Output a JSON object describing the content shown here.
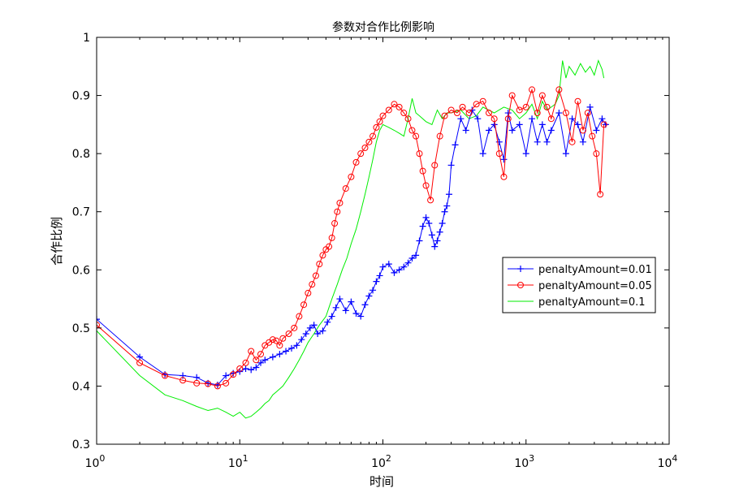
{
  "chart_data": {
    "type": "line",
    "title": "参数对合作比例影响",
    "xlabel": "时间",
    "ylabel": "合作比例",
    "xscale": "log",
    "xlim": [
      1,
      10000
    ],
    "ylim": [
      0.3,
      1.0
    ],
    "xticks": [
      1,
      10,
      100,
      1000,
      10000
    ],
    "xtick_base": "10",
    "xtick_exponents": [
      "0",
      "1",
      "2",
      "3",
      "4"
    ],
    "yticks": [
      "0.3",
      "0.4",
      "0.5",
      "0.6",
      "0.7",
      "0.8",
      "0.9",
      "1"
    ],
    "grid": false,
    "legend_position": "right",
    "series": [
      {
        "name": "penaltyAmount=0.01",
        "color": "#0000ff",
        "marker": "plus",
        "points": [
          [
            1,
            0.515
          ],
          [
            2,
            0.45
          ],
          [
            3,
            0.42
          ],
          [
            4,
            0.418
          ],
          [
            5,
            0.415
          ],
          [
            6,
            0.405
          ],
          [
            7,
            0.402
          ],
          [
            8,
            0.418
          ],
          [
            9,
            0.422
          ],
          [
            10,
            0.425
          ],
          [
            11,
            0.43
          ],
          [
            12,
            0.428
          ],
          [
            13,
            0.432
          ],
          [
            14,
            0.44
          ],
          [
            15,
            0.445
          ],
          [
            17,
            0.45
          ],
          [
            19,
            0.455
          ],
          [
            21,
            0.46
          ],
          [
            23,
            0.465
          ],
          [
            25,
            0.47
          ],
          [
            27,
            0.48
          ],
          [
            29,
            0.49
          ],
          [
            31,
            0.5
          ],
          [
            33,
            0.505
          ],
          [
            35,
            0.49
          ],
          [
            38,
            0.495
          ],
          [
            41,
            0.51
          ],
          [
            44,
            0.52
          ],
          [
            47,
            0.535
          ],
          [
            50,
            0.55
          ],
          [
            55,
            0.53
          ],
          [
            60,
            0.545
          ],
          [
            65,
            0.525
          ],
          [
            70,
            0.52
          ],
          [
            75,
            0.54
          ],
          [
            80,
            0.555
          ],
          [
            85,
            0.565
          ],
          [
            90,
            0.58
          ],
          [
            95,
            0.59
          ],
          [
            100,
            0.605
          ],
          [
            110,
            0.61
          ],
          [
            120,
            0.595
          ],
          [
            130,
            0.6
          ],
          [
            140,
            0.605
          ],
          [
            150,
            0.612
          ],
          [
            160,
            0.62
          ],
          [
            170,
            0.625
          ],
          [
            180,
            0.65
          ],
          [
            190,
            0.675
          ],
          [
            200,
            0.69
          ],
          [
            210,
            0.68
          ],
          [
            220,
            0.66
          ],
          [
            230,
            0.64
          ],
          [
            240,
            0.65
          ],
          [
            250,
            0.665
          ],
          [
            260,
            0.68
          ],
          [
            270,
            0.7
          ],
          [
            280,
            0.71
          ],
          [
            290,
            0.73
          ],
          [
            300,
            0.78
          ],
          [
            320,
            0.815
          ],
          [
            350,
            0.86
          ],
          [
            380,
            0.84
          ],
          [
            420,
            0.875
          ],
          [
            460,
            0.86
          ],
          [
            500,
            0.8
          ],
          [
            550,
            0.84
          ],
          [
            600,
            0.85
          ],
          [
            650,
            0.82
          ],
          [
            700,
            0.79
          ],
          [
            750,
            0.87
          ],
          [
            800,
            0.84
          ],
          [
            900,
            0.85
          ],
          [
            1000,
            0.8
          ],
          [
            1100,
            0.86
          ],
          [
            1200,
            0.82
          ],
          [
            1300,
            0.85
          ],
          [
            1400,
            0.82
          ],
          [
            1500,
            0.84
          ],
          [
            1700,
            0.87
          ],
          [
            1900,
            0.8
          ],
          [
            2100,
            0.86
          ],
          [
            2300,
            0.85
          ],
          [
            2500,
            0.82
          ],
          [
            2800,
            0.88
          ],
          [
            3100,
            0.84
          ],
          [
            3400,
            0.86
          ],
          [
            3600,
            0.85
          ]
        ]
      },
      {
        "name": "penaltyAmount=0.05",
        "color": "#ff0000",
        "marker": "circle",
        "points": [
          [
            1,
            0.505
          ],
          [
            2,
            0.44
          ],
          [
            3,
            0.418
          ],
          [
            4,
            0.41
          ],
          [
            5,
            0.405
          ],
          [
            6,
            0.404
          ],
          [
            7,
            0.4
          ],
          [
            8,
            0.405
          ],
          [
            9,
            0.42
          ],
          [
            10,
            0.43
          ],
          [
            11,
            0.44
          ],
          [
            12,
            0.46
          ],
          [
            13,
            0.445
          ],
          [
            14,
            0.455
          ],
          [
            15,
            0.47
          ],
          [
            16,
            0.475
          ],
          [
            17,
            0.48
          ],
          [
            18,
            0.478
          ],
          [
            19,
            0.47
          ],
          [
            20,
            0.482
          ],
          [
            22,
            0.49
          ],
          [
            24,
            0.5
          ],
          [
            26,
            0.52
          ],
          [
            28,
            0.54
          ],
          [
            30,
            0.56
          ],
          [
            32,
            0.575
          ],
          [
            34,
            0.59
          ],
          [
            36,
            0.61
          ],
          [
            38,
            0.625
          ],
          [
            40,
            0.635
          ],
          [
            42,
            0.64
          ],
          [
            44,
            0.655
          ],
          [
            46,
            0.68
          ],
          [
            48,
            0.7
          ],
          [
            50,
            0.715
          ],
          [
            55,
            0.74
          ],
          [
            60,
            0.76
          ],
          [
            65,
            0.785
          ],
          [
            70,
            0.8
          ],
          [
            75,
            0.81
          ],
          [
            80,
            0.82
          ],
          [
            85,
            0.83
          ],
          [
            90,
            0.845
          ],
          [
            95,
            0.855
          ],
          [
            100,
            0.865
          ],
          [
            110,
            0.875
          ],
          [
            120,
            0.885
          ],
          [
            130,
            0.88
          ],
          [
            140,
            0.87
          ],
          [
            150,
            0.86
          ],
          [
            160,
            0.84
          ],
          [
            170,
            0.83
          ],
          [
            180,
            0.8
          ],
          [
            190,
            0.77
          ],
          [
            200,
            0.745
          ],
          [
            215,
            0.72
          ],
          [
            230,
            0.78
          ],
          [
            250,
            0.83
          ],
          [
            270,
            0.865
          ],
          [
            300,
            0.875
          ],
          [
            330,
            0.87
          ],
          [
            360,
            0.88
          ],
          [
            400,
            0.87
          ],
          [
            450,
            0.885
          ],
          [
            500,
            0.89
          ],
          [
            550,
            0.87
          ],
          [
            600,
            0.86
          ],
          [
            650,
            0.8
          ],
          [
            700,
            0.76
          ],
          [
            750,
            0.86
          ],
          [
            800,
            0.9
          ],
          [
            900,
            0.875
          ],
          [
            1000,
            0.88
          ],
          [
            1100,
            0.91
          ],
          [
            1200,
            0.87
          ],
          [
            1300,
            0.9
          ],
          [
            1400,
            0.88
          ],
          [
            1500,
            0.86
          ],
          [
            1700,
            0.91
          ],
          [
            1900,
            0.87
          ],
          [
            2100,
            0.82
          ],
          [
            2300,
            0.89
          ],
          [
            2500,
            0.84
          ],
          [
            2700,
            0.87
          ],
          [
            2900,
            0.83
          ],
          [
            3100,
            0.8
          ],
          [
            3300,
            0.73
          ],
          [
            3500,
            0.85
          ]
        ]
      },
      {
        "name": "penaltyAmount=0.1",
        "color": "#00ee00",
        "marker": "none",
        "points": [
          [
            1,
            0.495
          ],
          [
            2,
            0.418
          ],
          [
            3,
            0.385
          ],
          [
            4,
            0.375
          ],
          [
            5,
            0.365
          ],
          [
            6,
            0.358
          ],
          [
            7,
            0.362
          ],
          [
            8,
            0.355
          ],
          [
            9,
            0.348
          ],
          [
            10,
            0.355
          ],
          [
            11,
            0.345
          ],
          [
            12,
            0.348
          ],
          [
            13,
            0.355
          ],
          [
            14,
            0.362
          ],
          [
            15,
            0.37
          ],
          [
            16,
            0.375
          ],
          [
            17,
            0.385
          ],
          [
            18,
            0.39
          ],
          [
            20,
            0.4
          ],
          [
            22,
            0.415
          ],
          [
            24,
            0.43
          ],
          [
            26,
            0.445
          ],
          [
            28,
            0.46
          ],
          [
            30,
            0.475
          ],
          [
            33,
            0.49
          ],
          [
            36,
            0.505
          ],
          [
            40,
            0.52
          ],
          [
            44,
            0.55
          ],
          [
            48,
            0.575
          ],
          [
            52,
            0.6
          ],
          [
            56,
            0.62
          ],
          [
            60,
            0.645
          ],
          [
            65,
            0.67
          ],
          [
            70,
            0.7
          ],
          [
            75,
            0.73
          ],
          [
            80,
            0.76
          ],
          [
            85,
            0.79
          ],
          [
            90,
            0.82
          ],
          [
            95,
            0.84
          ],
          [
            100,
            0.85
          ],
          [
            110,
            0.845
          ],
          [
            120,
            0.84
          ],
          [
            130,
            0.835
          ],
          [
            140,
            0.83
          ],
          [
            150,
            0.86
          ],
          [
            160,
            0.895
          ],
          [
            170,
            0.87
          ],
          [
            180,
            0.865
          ],
          [
            200,
            0.855
          ],
          [
            220,
            0.85
          ],
          [
            240,
            0.875
          ],
          [
            260,
            0.86
          ],
          [
            280,
            0.87
          ],
          [
            300,
            0.87
          ],
          [
            350,
            0.875
          ],
          [
            400,
            0.86
          ],
          [
            450,
            0.865
          ],
          [
            500,
            0.88
          ],
          [
            600,
            0.87
          ],
          [
            700,
            0.88
          ],
          [
            800,
            0.875
          ],
          [
            900,
            0.86
          ],
          [
            1000,
            0.87
          ],
          [
            1100,
            0.885
          ],
          [
            1200,
            0.86
          ],
          [
            1300,
            0.89
          ],
          [
            1400,
            0.875
          ],
          [
            1500,
            0.88
          ],
          [
            1600,
            0.885
          ],
          [
            1700,
            0.9
          ],
          [
            1800,
            0.96
          ],
          [
            1900,
            0.93
          ],
          [
            2000,
            0.95
          ],
          [
            2200,
            0.935
          ],
          [
            2400,
            0.955
          ],
          [
            2600,
            0.94
          ],
          [
            2800,
            0.95
          ],
          [
            3000,
            0.935
          ],
          [
            3200,
            0.96
          ],
          [
            3400,
            0.945
          ],
          [
            3500,
            0.93
          ]
        ]
      }
    ]
  }
}
